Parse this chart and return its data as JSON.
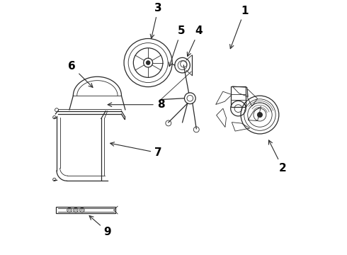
{
  "background_color": "#ffffff",
  "line_color": "#2a2a2a",
  "label_color": "#000000",
  "label_fontsize": 11,
  "figsize": [
    4.9,
    3.6
  ],
  "dpi": 100,
  "labels": {
    "1": {
      "lpos": [
        0.78,
        0.96
      ],
      "apos": [
        0.72,
        0.8
      ]
    },
    "2": {
      "lpos": [
        0.93,
        0.34
      ],
      "apos": [
        0.87,
        0.46
      ]
    },
    "3": {
      "lpos": [
        0.44,
        0.97
      ],
      "apos": [
        0.41,
        0.84
      ]
    },
    "4": {
      "lpos": [
        0.6,
        0.88
      ],
      "apos": [
        0.55,
        0.77
      ]
    },
    "5": {
      "lpos": [
        0.53,
        0.88
      ],
      "apos": [
        0.48,
        0.73
      ]
    },
    "6": {
      "lpos": [
        0.1,
        0.74
      ],
      "apos": [
        0.19,
        0.65
      ]
    },
    "7": {
      "lpos": [
        0.44,
        0.4
      ],
      "apos": [
        0.24,
        0.44
      ]
    },
    "8": {
      "lpos": [
        0.45,
        0.59
      ],
      "apos": [
        0.23,
        0.59
      ]
    },
    "9": {
      "lpos": [
        0.24,
        0.09
      ],
      "apos": [
        0.16,
        0.16
      ]
    }
  }
}
